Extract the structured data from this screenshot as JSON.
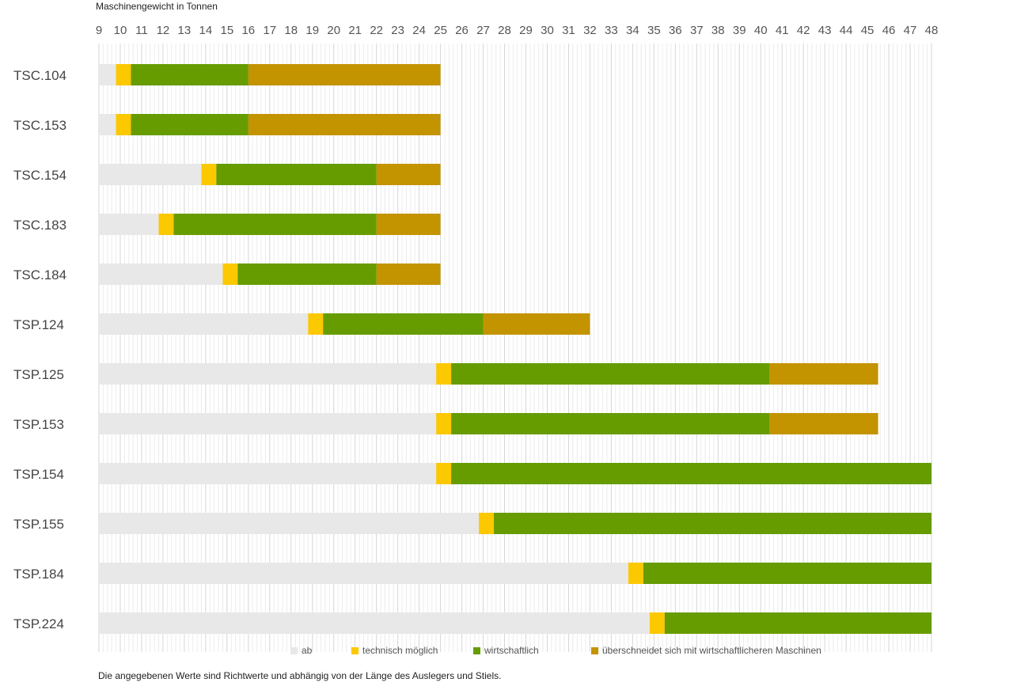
{
  "chart_data": {
    "type": "bar",
    "orientation": "horizontal-stacked",
    "title": "",
    "xlabel": "Maschinengewicht in Tonnen",
    "xlim": [
      9,
      48
    ],
    "xticks": [
      9,
      10,
      11,
      12,
      13,
      14,
      15,
      16,
      17,
      18,
      19,
      20,
      21,
      22,
      23,
      24,
      25,
      26,
      27,
      28,
      29,
      30,
      31,
      32,
      33,
      34,
      35,
      36,
      37,
      38,
      39,
      40,
      41,
      42,
      43,
      44,
      45,
      46,
      47,
      48
    ],
    "grid": true,
    "legend_position": "bottom",
    "categories": [
      "TSC.104",
      "TSC.153",
      "TSC.154",
      "TSC.183",
      "TSC.184",
      "TSP.124",
      "TSP.125",
      "TSP.153",
      "TSP.154",
      "TSP.155",
      "TSP.184",
      "TSP.224"
    ],
    "series": [
      {
        "name": "ab",
        "color": "#e8e8e8",
        "ranges": [
          [
            9,
            9.8
          ],
          [
            9,
            9.8
          ],
          [
            9,
            13.8
          ],
          [
            9,
            11.8
          ],
          [
            9,
            14.8
          ],
          [
            9,
            18.8
          ],
          [
            9,
            24.8
          ],
          [
            9,
            24.8
          ],
          [
            9,
            24.8
          ],
          [
            9,
            26.8
          ],
          [
            9,
            33.8
          ],
          [
            9,
            34.8
          ]
        ]
      },
      {
        "name": "technisch möglich",
        "color": "#fcc800",
        "ranges": [
          [
            9.8,
            10.5
          ],
          [
            9.8,
            10.5
          ],
          [
            13.8,
            14.5
          ],
          [
            11.8,
            12.5
          ],
          [
            14.8,
            15.5
          ],
          [
            18.8,
            19.5
          ],
          [
            24.8,
            25.5
          ],
          [
            24.8,
            25.5
          ],
          [
            24.8,
            25.5
          ],
          [
            26.8,
            27.5
          ],
          [
            33.8,
            34.5
          ],
          [
            34.8,
            35.5
          ]
        ]
      },
      {
        "name": "wirtschaftlich",
        "color": "#669c00",
        "ranges": [
          [
            10.5,
            16
          ],
          [
            10.5,
            16
          ],
          [
            14.5,
            22
          ],
          [
            12.5,
            22
          ],
          [
            15.5,
            22
          ],
          [
            19.5,
            27
          ],
          [
            25.5,
            40.4
          ],
          [
            25.5,
            40.4
          ],
          [
            25.5,
            48
          ],
          [
            27.5,
            48
          ],
          [
            34.5,
            48
          ],
          [
            35.5,
            48
          ]
        ]
      },
      {
        "name": "überschneidet sich mit wirtschaftlicheren Maschinen",
        "color": "#c49300",
        "ranges": [
          [
            16,
            25
          ],
          [
            16,
            25
          ],
          [
            22,
            25
          ],
          [
            22,
            25
          ],
          [
            22,
            25
          ],
          [
            27,
            32
          ],
          [
            40.4,
            45.5
          ],
          [
            40.4,
            45.5
          ],
          null,
          null,
          null,
          null
        ]
      }
    ]
  },
  "note": "Die angegebenen Werte sind Richtwerte und abhängig von der Länge des Auslegers und Stiels."
}
